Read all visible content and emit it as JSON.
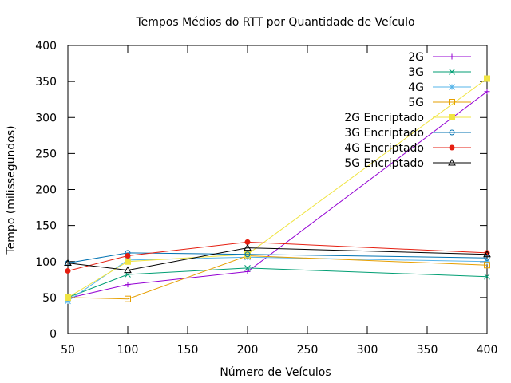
{
  "chart_data": {
    "type": "line",
    "title": "Tempos Médios do RTT por Quantidade de Veículo",
    "xlabel": "Número de Veículos",
    "ylabel": "Tempo (milissegundos)",
    "xlim": [
      50,
      400
    ],
    "ylim": [
      0,
      400
    ],
    "xticks": [
      50,
      100,
      150,
      200,
      250,
      300,
      350,
      400
    ],
    "yticks": [
      0,
      50,
      100,
      150,
      200,
      250,
      300,
      350,
      400
    ],
    "x": [
      50,
      100,
      200,
      400
    ],
    "grid": false,
    "legend_position": "top-right",
    "series": [
      {
        "name": "2G",
        "color": "#9400d3",
        "marker": "plus",
        "values": [
          49,
          68,
          86,
          336
        ]
      },
      {
        "name": "3G",
        "color": "#009e73",
        "marker": "cross",
        "values": [
          50,
          82,
          91,
          79
        ]
      },
      {
        "name": "4G",
        "color": "#56b4e9",
        "marker": "star",
        "values": [
          45,
          102,
          106,
          100
        ]
      },
      {
        "name": "5G",
        "color": "#e69f00",
        "marker": "square-open",
        "values": [
          50,
          48,
          108,
          95
        ]
      },
      {
        "name": "2G Encriptado",
        "color": "#f0e442",
        "marker": "square-filled",
        "values": [
          50,
          100,
          110,
          354
        ]
      },
      {
        "name": "3G Encriptado",
        "color": "#0072b2",
        "marker": "circle-open",
        "values": [
          98,
          112,
          110,
          105
        ]
      },
      {
        "name": "4G Encriptado",
        "color": "#e51e10",
        "marker": "circle-filled",
        "values": [
          87,
          108,
          127,
          112
        ]
      },
      {
        "name": "5G Encriptado",
        "color": "#000000",
        "marker": "triangle-open",
        "values": [
          98,
          88,
          119,
          110
        ]
      }
    ]
  }
}
